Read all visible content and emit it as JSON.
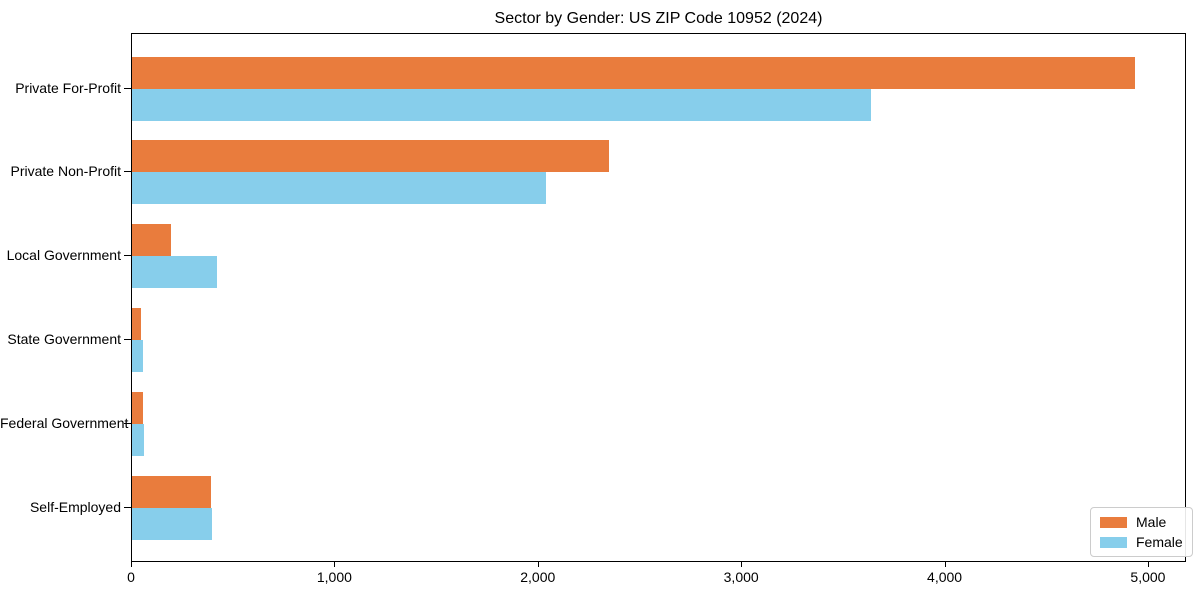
{
  "chart_data": {
    "type": "bar",
    "orientation": "horizontal",
    "title": "Sector by Gender: US ZIP Code 10952 (2024)",
    "xlabel": "",
    "ylabel": "",
    "categories": [
      "Private For-Profit",
      "Private Non-Profit",
      "Local Government",
      "State Government",
      "Federal Government",
      "Self-Employed"
    ],
    "series": [
      {
        "name": "Male",
        "color": "#e97c3d",
        "values": [
          4940,
          2350,
          190,
          45,
          55,
          390
        ]
      },
      {
        "name": "Female",
        "color": "#87ceeb",
        "values": [
          3640,
          2040,
          420,
          55,
          60,
          395
        ]
      }
    ],
    "xlim": [
      0,
      5187
    ],
    "xticks": [
      {
        "value": 0,
        "label": "0"
      },
      {
        "value": 1000,
        "label": "1,000"
      },
      {
        "value": 2000,
        "label": "2,000"
      },
      {
        "value": 3000,
        "label": "3,000"
      },
      {
        "value": 4000,
        "label": "4,000"
      },
      {
        "value": 5000,
        "label": "5,000"
      }
    ],
    "grid": false,
    "legend_position": "lower right",
    "background_color": "#ffffff",
    "axis_color": "#000000"
  }
}
